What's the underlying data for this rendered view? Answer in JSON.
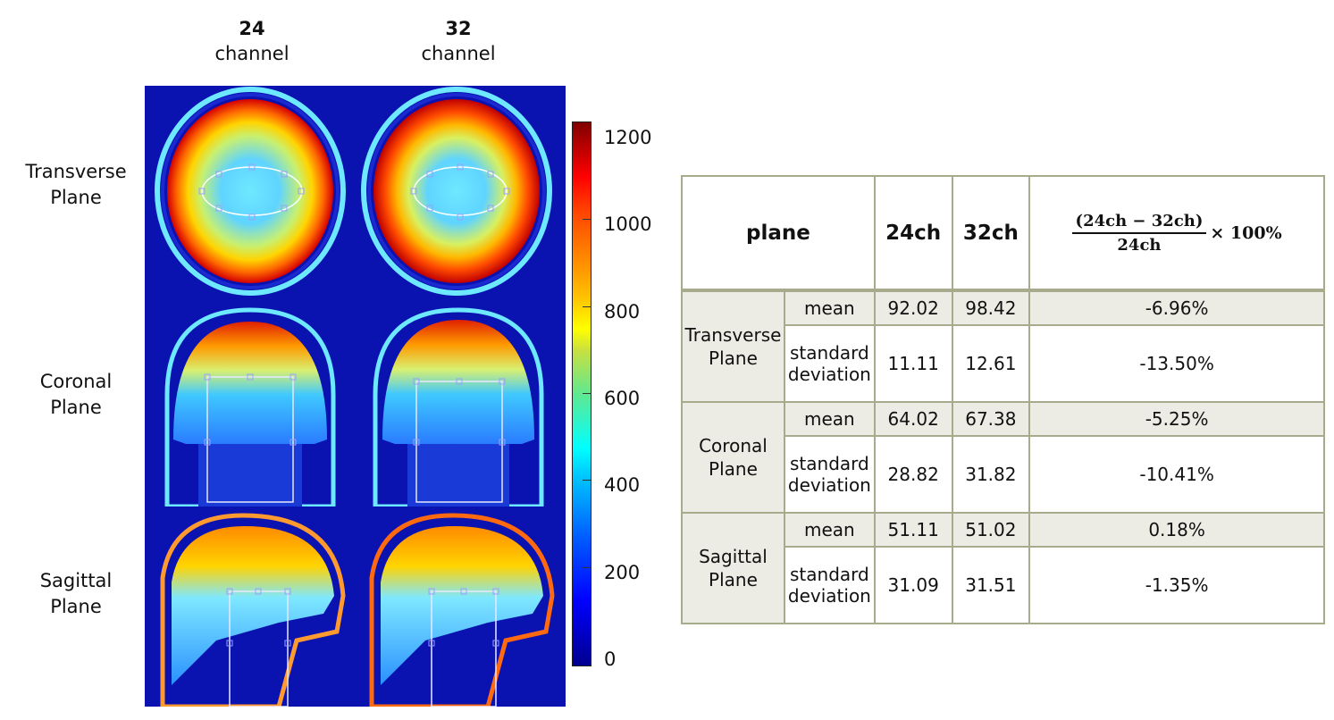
{
  "columns": [
    {
      "number": "24",
      "word": "channel"
    },
    {
      "number": "32",
      "word": "channel"
    }
  ],
  "rows": [
    {
      "line1": "Transverse",
      "line2": "Plane"
    },
    {
      "line1": "Coronal",
      "line2": "Plane"
    },
    {
      "line1": "Sagittal",
      "line2": "Plane"
    }
  ],
  "colorbar": {
    "ticks": [
      "1200",
      "1000",
      "800",
      "600",
      "400",
      "200",
      "0"
    ],
    "min": 0,
    "max": 1200,
    "colormap": "jet"
  },
  "table": {
    "headers": {
      "plane": "plane",
      "ch24": "24ch",
      "ch32": "32ch",
      "formula_numerator": "(24ch − 32ch)",
      "formula_denominator": "24ch",
      "formula_tail": "× 100%"
    },
    "groups": [
      {
        "plane_line1": "Transverse",
        "plane_line2": "Plane",
        "mean": {
          "label": "mean",
          "ch24": "92.02",
          "ch32": "98.42",
          "diff": "-6.96%"
        },
        "std": {
          "label_line1": "standard",
          "label_line2": "deviation",
          "ch24": "11.11",
          "ch32": "12.61",
          "diff": "-13.50%"
        }
      },
      {
        "plane_line1": "Coronal",
        "plane_line2": "Plane",
        "mean": {
          "label": "mean",
          "ch24": "64.02",
          "ch32": "67.38",
          "diff": "-5.25%"
        },
        "std": {
          "label_line1": "standard",
          "label_line2": "deviation",
          "ch24": "28.82",
          "ch32": "31.82",
          "diff": "-10.41%"
        }
      },
      {
        "plane_line1": "Sagittal",
        "plane_line2": "Plane",
        "mean": {
          "label": "mean",
          "ch24": "51.11",
          "ch32": "51.02",
          "diff": "0.18%"
        },
        "std": {
          "label_line1": "standard",
          "label_line2": "deviation",
          "ch24": "31.09",
          "ch32": "31.51",
          "diff": "-1.35%"
        }
      }
    ]
  }
}
